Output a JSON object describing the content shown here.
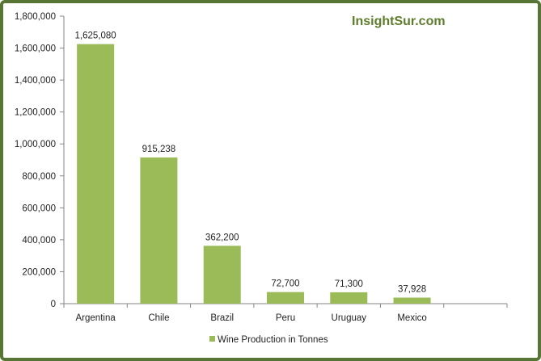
{
  "colors": {
    "frame": "#577535",
    "bar": "#9bbb59",
    "axis": "#868686",
    "brand": "#5e7d2c"
  },
  "brand_text": "InsightSur.com",
  "chart_data": {
    "type": "bar",
    "categories": [
      "Argentina",
      "Chile",
      "Brazil",
      "Peru",
      "Uruguay",
      "Mexico"
    ],
    "series": [
      {
        "name": "Wine Production in Tonnes",
        "values": [
          1625080,
          915238,
          362200,
          72700,
          71300,
          37928
        ],
        "data_labels": [
          "1,625,080",
          "915,238",
          "362,200",
          "72,700",
          "71,300",
          "37,928"
        ]
      }
    ],
    "ylim": [
      0,
      1800000
    ],
    "yticks": [
      0,
      200000,
      400000,
      600000,
      800000,
      1000000,
      1200000,
      1400000,
      1600000,
      1800000
    ],
    "ytick_labels": [
      "0",
      "200,000",
      "400,000",
      "600,000",
      "800,000",
      "1,000,000",
      "1,200,000",
      "1,400,000",
      "1,600,000",
      "1,800,000"
    ],
    "grid": false,
    "legend_position": "bottom"
  }
}
